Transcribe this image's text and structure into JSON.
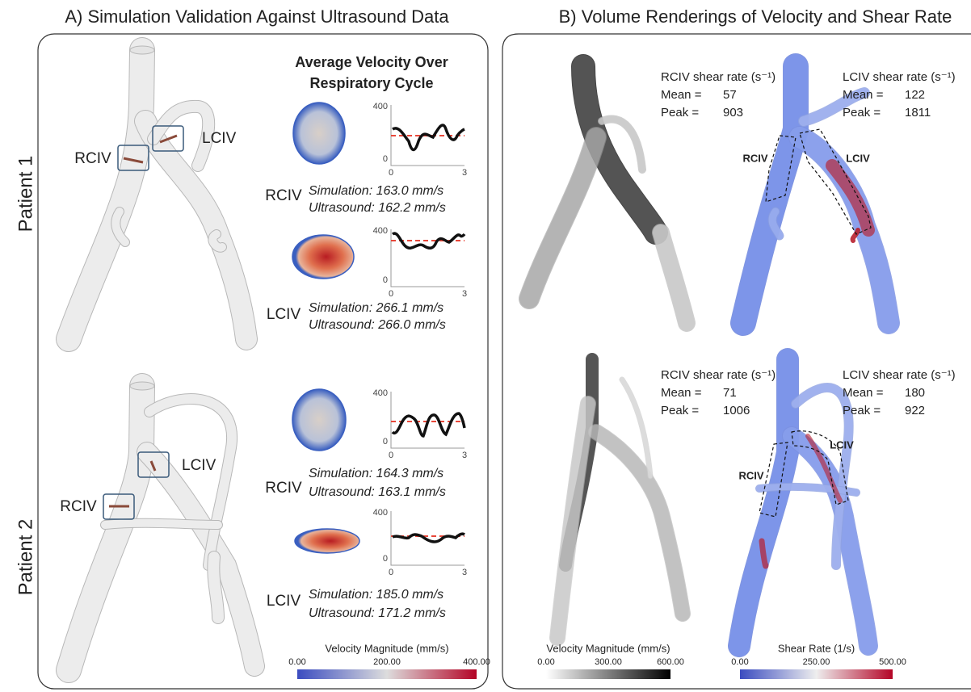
{
  "panel_a": {
    "title": "A) Simulation Validation Against Ultrasound Data",
    "heading": [
      "Average Velocity Over",
      "Respiratory Cycle"
    ],
    "patients": [
      {
        "label": "Patient 1",
        "anatomy_labels": [
          "RCIV",
          "LCIV"
        ],
        "vessels": [
          {
            "name": "RCIV",
            "simulation": "Simulation: 163.0 mm/s",
            "ultrasound": "Ultrasound: 162.2 mm/s",
            "yticks": [
              "400",
              "0"
            ],
            "xticks": [
              "0",
              "3"
            ]
          },
          {
            "name": "LCIV",
            "simulation": "Simulation: 266.1 mm/s",
            "ultrasound": "Ultrasound: 266.0 mm/s",
            "yticks": [
              "400",
              "0"
            ],
            "xticks": [
              "0",
              "3"
            ]
          }
        ]
      },
      {
        "label": "Patient 2",
        "anatomy_labels": [
          "RCIV",
          "LCIV"
        ],
        "vessels": [
          {
            "name": "RCIV",
            "simulation": "Simulation: 164.3 mm/s",
            "ultrasound": "Ultrasound: 163.1 mm/s",
            "yticks": [
              "400",
              "0"
            ],
            "xticks": [
              "0",
              "3"
            ]
          },
          {
            "name": "LCIV",
            "simulation": "Simulation: 185.0 mm/s",
            "ultrasound": "Ultrasound: 171.2 mm/s",
            "yticks": [
              "400",
              "0"
            ],
            "xticks": [
              "0",
              "3"
            ]
          }
        ]
      }
    ],
    "colorbar": {
      "title": "Velocity Magnitude (mm/s)",
      "ticks": [
        "0.00",
        "200.00",
        "400.00"
      ]
    }
  },
  "panel_b": {
    "title": "B) Volume Renderings of Velocity and Shear Rate",
    "patients": [
      {
        "region_labels": [
          "RCIV",
          "LCIV"
        ],
        "stats": [
          {
            "header": "RCIV shear rate (s⁻¹)",
            "mean_label": "Mean =",
            "mean": 57,
            "peak_label": "Peak =",
            "peak": 903
          },
          {
            "header": "LCIV shear rate (s⁻¹)",
            "mean_label": "Mean =",
            "mean": 122,
            "peak_label": "Peak =",
            "peak": 1811
          }
        ]
      },
      {
        "region_labels": [
          "RCIV",
          "LCIV"
        ],
        "stats": [
          {
            "header": "RCIV shear rate (s⁻¹)",
            "mean_label": "Mean =",
            "mean": 71,
            "peak_label": "Peak =",
            "peak": 1006
          },
          {
            "header": "LCIV shear rate (s⁻¹)",
            "mean_label": "Mean =",
            "mean": 180,
            "peak_label": "Peak =",
            "peak": 922
          }
        ]
      }
    ],
    "colorbars": [
      {
        "title": "Velocity Magnitude (mm/s)",
        "ticks": [
          "0.00",
          "300.00",
          "600.00"
        ]
      },
      {
        "title": "Shear Rate (1/s)",
        "ticks": [
          "0.00",
          "250.00",
          "500.00"
        ]
      }
    ]
  }
}
